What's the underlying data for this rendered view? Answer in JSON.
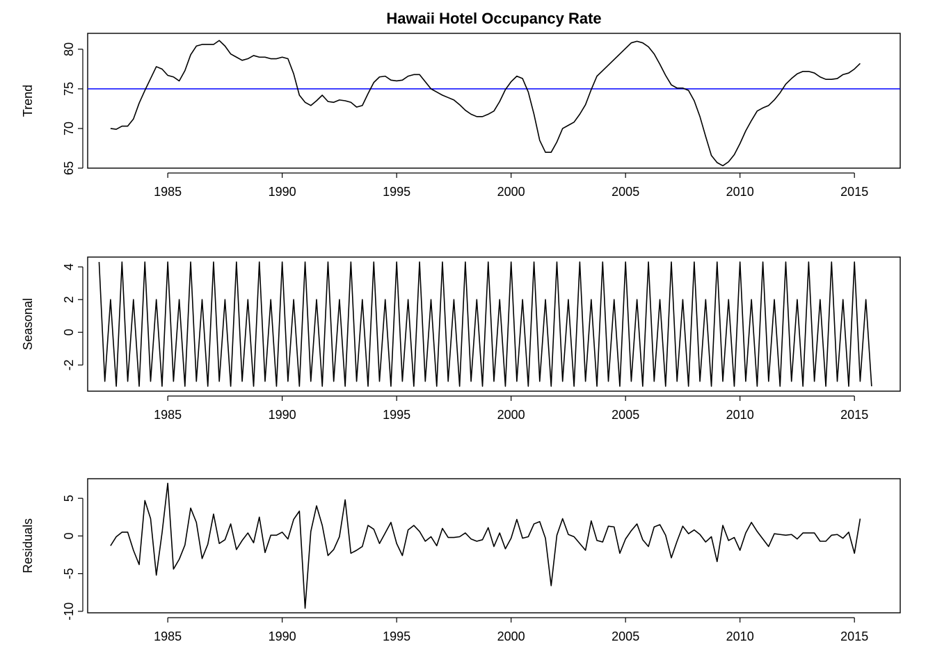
{
  "title": "Hawaii Hotel Occupancy Rate",
  "chart_data": [
    {
      "type": "line",
      "ylabel": "Trend",
      "xlabel": "",
      "xlim": [
        1981.5,
        2017.0
      ],
      "ylim": [
        65,
        82
      ],
      "x_ticks": [
        1985,
        1990,
        1995,
        2000,
        2005,
        2010,
        2015
      ],
      "y_ticks": [
        65,
        70,
        75,
        80
      ],
      "reference_line": {
        "y": 75,
        "color": "#0000ff"
      },
      "series": [
        {
          "x": [
            1982.5,
            1982.75,
            1983.0,
            1983.25,
            1983.5,
            1983.75,
            1984.0,
            1984.25,
            1984.5,
            1984.75,
            1985.0,
            1985.25,
            1985.5,
            1985.75,
            1986.0,
            1986.25,
            1986.5,
            1986.75,
            1987.0,
            1987.25,
            1987.5,
            1987.75,
            1988.0,
            1988.25,
            1988.5,
            1988.75,
            1989.0,
            1989.25,
            1989.5,
            1989.75,
            1990.0,
            1990.25,
            1990.5,
            1990.75,
            1991.0,
            1991.25,
            1991.5,
            1991.75,
            1992.0,
            1992.25,
            1992.5,
            1992.75,
            1993.0,
            1993.25,
            1993.5,
            1993.75,
            1994.0,
            1994.25,
            1994.5,
            1994.75,
            1995.0,
            1995.25,
            1995.5,
            1995.75,
            1996.0,
            1996.25,
            1996.5,
            1996.75,
            1997.0,
            1997.25,
            1997.5,
            1997.75,
            1998.0,
            1998.25,
            1998.5,
            1998.75,
            1999.0,
            1999.25,
            1999.5,
            1999.75,
            2000.0,
            2000.25,
            2000.5,
            2000.75,
            2001.0,
            2001.25,
            2001.5,
            2001.75,
            2002.0,
            2002.25,
            2002.5,
            2002.75,
            2003.0,
            2003.25,
            2003.5,
            2003.75,
            2004.0,
            2004.25,
            2004.5,
            2004.75,
            2005.0,
            2005.25,
            2005.5,
            2005.75,
            2006.0,
            2006.25,
            2006.5,
            2006.75,
            2007.0,
            2007.25,
            2007.5,
            2007.75,
            2008.0,
            2008.25,
            2008.5,
            2008.75,
            2009.0,
            2009.25,
            2009.5,
            2009.75,
            2010.0,
            2010.25,
            2010.5,
            2010.75,
            2011.0,
            2011.25,
            2011.5,
            2011.75,
            2012.0,
            2012.25,
            2012.5,
            2012.75,
            2013.0,
            2013.25,
            2013.5,
            2013.75,
            2014.0,
            2014.25,
            2014.5,
            2014.75,
            2015.0,
            2015.25
          ],
          "values": [
            70.0,
            69.9,
            70.3,
            70.3,
            71.2,
            73.2,
            74.8,
            76.3,
            77.8,
            77.5,
            76.7,
            76.5,
            76.0,
            77.3,
            79.3,
            80.4,
            80.6,
            80.6,
            80.6,
            81.1,
            80.4,
            79.4,
            79.0,
            78.6,
            78.8,
            79.2,
            79.0,
            79.0,
            78.8,
            78.8,
            79.0,
            78.8,
            76.9,
            74.2,
            73.3,
            72.9,
            73.5,
            74.2,
            73.4,
            73.3,
            73.6,
            73.5,
            73.3,
            72.7,
            72.9,
            74.4,
            75.8,
            76.5,
            76.6,
            76.1,
            76.0,
            76.1,
            76.6,
            76.8,
            76.8,
            75.9,
            75.0,
            74.6,
            74.2,
            73.9,
            73.6,
            73.0,
            72.3,
            71.8,
            71.5,
            71.5,
            71.8,
            72.2,
            73.4,
            74.9,
            75.9,
            76.6,
            76.3,
            74.6,
            71.8,
            68.5,
            67.0,
            67.0,
            68.3,
            70.0,
            70.4,
            70.8,
            71.8,
            73.0,
            74.9,
            76.6,
            77.3,
            78.0,
            78.7,
            79.4,
            80.1,
            80.8,
            81.0,
            80.8,
            80.3,
            79.4,
            78.1,
            76.7,
            75.5,
            75.1,
            75.1,
            74.8,
            73.5,
            71.5,
            69.0,
            66.6,
            65.7,
            65.3,
            65.8,
            66.7,
            68.1,
            69.7,
            71.0,
            72.2,
            72.6,
            72.9,
            73.6,
            74.5,
            75.6,
            76.3,
            76.9,
            77.2,
            77.2,
            77.0,
            76.5,
            76.2,
            76.2,
            76.3,
            76.8,
            77.0,
            77.5,
            78.2
          ]
        }
      ]
    },
    {
      "type": "line",
      "ylabel": "Seasonal",
      "xlabel": "",
      "xlim": [
        1981.5,
        2017.0
      ],
      "ylim": [
        -3.6,
        4.6
      ],
      "x_ticks": [
        1985,
        1990,
        1995,
        2000,
        2005,
        2010,
        2015
      ],
      "y_ticks": [
        -2,
        0,
        2,
        4
      ],
      "seasonal_cycle": {
        "start": 1982.0,
        "end": 2015.75,
        "period": 1.0,
        "step": 0.25,
        "pattern": [
          4.3,
          -3.0,
          2.0,
          -3.3
        ]
      },
      "series": [
        {
          "x": [],
          "values": []
        }
      ]
    },
    {
      "type": "line",
      "ylabel": "Residuals",
      "xlabel": "",
      "xlim": [
        1981.5,
        2017.0
      ],
      "ylim": [
        -10.2,
        7.6
      ],
      "x_ticks": [
        1985,
        1990,
        1995,
        2000,
        2005,
        2010,
        2015
      ],
      "y_ticks": [
        -10,
        -5,
        0,
        5
      ],
      "series": [
        {
          "x": [
            1982.5,
            1982.75,
            1983.0,
            1983.25,
            1983.5,
            1983.75,
            1984.0,
            1984.25,
            1984.5,
            1984.75,
            1985.0,
            1985.25,
            1985.5,
            1985.75,
            1986.0,
            1986.25,
            1986.5,
            1986.75,
            1987.0,
            1987.25,
            1987.5,
            1987.75,
            1988.0,
            1988.25,
            1988.5,
            1988.75,
            1989.0,
            1989.25,
            1989.5,
            1989.75,
            1990.0,
            1990.25,
            1990.5,
            1990.75,
            1991.0,
            1991.25,
            1991.5,
            1991.75,
            1992.0,
            1992.25,
            1992.5,
            1992.75,
            1993.0,
            1993.25,
            1993.5,
            1993.75,
            1994.0,
            1994.25,
            1994.5,
            1994.75,
            1995.0,
            1995.25,
            1995.5,
            1995.75,
            1996.0,
            1996.25,
            1996.5,
            1996.75,
            1997.0,
            1997.25,
            1997.5,
            1997.75,
            1998.0,
            1998.25,
            1998.5,
            1998.75,
            1999.0,
            1999.25,
            1999.5,
            1999.75,
            2000.0,
            2000.25,
            2000.5,
            2000.75,
            2001.0,
            2001.25,
            2001.5,
            2001.75,
            2002.0,
            2002.25,
            2002.5,
            2002.75,
            2003.0,
            2003.25,
            2003.5,
            2003.75,
            2004.0,
            2004.25,
            2004.5,
            2004.75,
            2005.0,
            2005.25,
            2005.5,
            2005.75,
            2006.0,
            2006.25,
            2006.5,
            2006.75,
            2007.0,
            2007.25,
            2007.5,
            2007.75,
            2008.0,
            2008.25,
            2008.5,
            2008.75,
            2009.0,
            2009.25,
            2009.5,
            2009.75,
            2010.0,
            2010.25,
            2010.5,
            2010.75,
            2011.0,
            2011.25,
            2011.5,
            2011.75,
            2012.0,
            2012.25,
            2012.5,
            2012.75,
            2013.0,
            2013.25,
            2013.5,
            2013.75,
            2014.0,
            2014.25,
            2014.5,
            2014.75,
            2015.0,
            2015.25
          ],
          "values": [
            -1.3,
            -0.1,
            0.5,
            0.5,
            -1.9,
            -3.8,
            4.7,
            2.3,
            -5.2,
            0.4,
            7.0,
            -4.4,
            -3.1,
            -1.2,
            3.7,
            1.8,
            -3.0,
            -1.1,
            2.9,
            -1.0,
            -0.5,
            1.6,
            -1.8,
            -0.6,
            0.4,
            -0.9,
            2.5,
            -2.2,
            0.1,
            0.1,
            0.5,
            -0.4,
            2.2,
            3.3,
            -9.6,
            0.6,
            4.0,
            1.4,
            -2.6,
            -1.8,
            -0.1,
            4.8,
            -2.3,
            -1.9,
            -1.4,
            1.4,
            0.9,
            -1.0,
            0.4,
            1.8,
            -1.0,
            -2.6,
            0.8,
            1.4,
            0.6,
            -0.7,
            -0.1,
            -1.3,
            1.0,
            -0.2,
            -0.2,
            -0.1,
            0.4,
            -0.4,
            -0.7,
            -0.5,
            1.1,
            -1.4,
            0.4,
            -1.7,
            -0.3,
            2.2,
            -0.3,
            -0.1,
            1.6,
            1.9,
            -0.3,
            -6.6,
            0.1,
            2.3,
            0.2,
            -0.1,
            -1.0,
            -1.9,
            2.0,
            -0.6,
            -0.8,
            1.3,
            1.2,
            -2.3,
            -0.4,
            0.7,
            1.6,
            -0.5,
            -1.4,
            1.2,
            1.5,
            0.1,
            -2.9,
            -0.7,
            1.3,
            0.3,
            0.8,
            0.2,
            -0.8,
            -0.1,
            -3.4,
            1.4,
            -0.6,
            -0.2,
            -1.9,
            0.4,
            1.8,
            0.6,
            -0.4,
            -1.4,
            0.3,
            0.2,
            0.1,
            0.2,
            -0.4,
            0.4,
            0.4,
            0.4,
            -0.7,
            -0.7,
            0.1,
            0.2,
            -0.3,
            0.5,
            -2.3,
            2.3
          ]
        }
      ]
    }
  ]
}
